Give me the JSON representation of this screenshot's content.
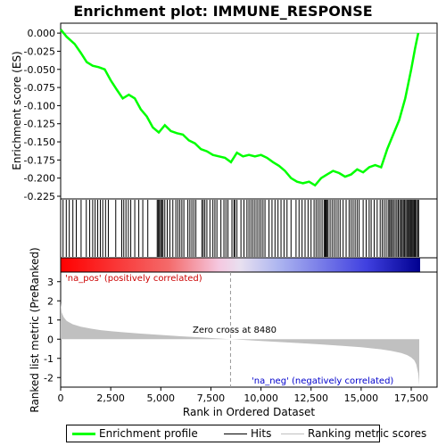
{
  "chart_data": {
    "title": "Enrichment plot: IMMUNE_RESPONSE",
    "x_axis": {
      "label": "Rank in Ordered Dataset",
      "range": [
        0,
        18000
      ],
      "ticks": [
        0,
        2500,
        5000,
        7500,
        10000,
        12500,
        15000,
        17500
      ],
      "tick_labels": [
        "0",
        "2,500",
        "5,000",
        "7,500",
        "10,000",
        "12,500",
        "15,000",
        "17,500"
      ]
    },
    "es_panel": {
      "type": "line",
      "ylabel": "Enrichment score (ES)",
      "ylim": [
        -0.225,
        0.01
      ],
      "yticks": [
        0.0,
        -0.025,
        -0.05,
        -0.075,
        -0.1,
        -0.125,
        -0.15,
        -0.175,
        -0.2,
        -0.225
      ],
      "ytick_labels": [
        "0.000",
        "-0.025",
        "-0.050",
        "-0.075",
        "-0.100",
        "-0.125",
        "-0.150",
        "-0.175",
        "-0.200",
        "-0.225"
      ],
      "series": [
        {
          "name": "Enrichment profile",
          "color": "#00ff00",
          "x": [
            0,
            300,
            700,
            1000,
            1300,
            1600,
            1900,
            2200,
            2500,
            2800,
            3100,
            3400,
            3700,
            4000,
            4300,
            4600,
            4900,
            5200,
            5500,
            5800,
            6100,
            6400,
            6700,
            7000,
            7300,
            7600,
            7900,
            8200,
            8500,
            8800,
            9100,
            9400,
            9700,
            10000,
            10300,
            10600,
            10900,
            11200,
            11500,
            11800,
            12100,
            12400,
            12700,
            13000,
            13300,
            13600,
            13900,
            14200,
            14500,
            14800,
            15100,
            15400,
            15700,
            16000,
            16300,
            16600,
            16900,
            17200,
            17500,
            17700,
            17850
          ],
          "y": [
            0.005,
            -0.005,
            -0.015,
            -0.027,
            -0.04,
            -0.045,
            -0.047,
            -0.05,
            -0.065,
            -0.078,
            -0.09,
            -0.085,
            -0.09,
            -0.105,
            -0.115,
            -0.13,
            -0.137,
            -0.127,
            -0.135,
            -0.138,
            -0.14,
            -0.148,
            -0.152,
            -0.16,
            -0.163,
            -0.168,
            -0.17,
            -0.172,
            -0.178,
            -0.165,
            -0.17,
            -0.168,
            -0.17,
            -0.168,
            -0.172,
            -0.178,
            -0.183,
            -0.19,
            -0.2,
            -0.205,
            -0.207,
            -0.205,
            -0.21,
            -0.2,
            -0.195,
            -0.19,
            -0.193,
            -0.198,
            -0.195,
            -0.188,
            -0.192,
            -0.185,
            -0.182,
            -0.185,
            -0.16,
            -0.14,
            -0.12,
            -0.09,
            -0.05,
            -0.02,
            0.0
          ]
        }
      ]
    },
    "hits_panel": {
      "name": "Hits",
      "color": "#000000",
      "positions": [
        120,
        280,
        430,
        610,
        780,
        1020,
        1280,
        1450,
        1600,
        1720,
        1850,
        1980,
        2100,
        2240,
        2380,
        2750,
        3050,
        3150,
        3260,
        3380,
        3500,
        3700,
        3900,
        4100,
        4350,
        4820,
        4870,
        4930,
        4990,
        5050,
        5110,
        5200,
        5320,
        5450,
        5600,
        5750,
        5850,
        5950,
        6050,
        6150,
        6350,
        6450,
        6550,
        6650,
        6750,
        7050,
        7120,
        7200,
        7300,
        7450,
        7600,
        7700,
        7800,
        8000,
        8150,
        8250,
        8350,
        8550,
        8650,
        8700,
        8800,
        9000,
        9150,
        9300,
        9400,
        9500,
        9600,
        9700,
        9800,
        9900,
        10000,
        10100,
        10200,
        10400,
        10550,
        10700,
        10850,
        11000,
        11150,
        11300,
        11500,
        11750,
        11900,
        12050,
        12200,
        12350,
        12500,
        12650,
        12750,
        12850,
        12950,
        13050,
        13150,
        13200,
        13250,
        13300,
        13350,
        13450,
        13550,
        13650,
        13750,
        13850,
        13950,
        14100,
        14250,
        14400,
        14500,
        14600,
        14700,
        14800,
        14900,
        15100,
        15250,
        15400,
        15500,
        15650,
        15800,
        15950,
        16050,
        16150,
        16250,
        16350,
        16420,
        16480,
        16550,
        16620,
        16700,
        16780,
        16850,
        16920,
        16990,
        17050,
        17110,
        17170,
        17230,
        17290,
        17350,
        17400,
        17450,
        17500,
        17550,
        17600,
        17650,
        17700,
        17760,
        17820,
        17870
      ]
    },
    "metric_panel": {
      "type": "area",
      "name": "Ranking metric scores",
      "color": "#c0c0c0",
      "ylabel": "Ranked list metric (PreRanked)",
      "ylim": [
        -2.5,
        3.5
      ],
      "yticks": [
        3,
        2,
        1,
        0,
        -1,
        -2
      ],
      "ytick_labels": [
        "3",
        "2",
        "1",
        "0",
        "-1",
        "-2"
      ],
      "x": [
        0,
        50,
        150,
        300,
        600,
        1000,
        1500,
        2000,
        3000,
        4000,
        5000,
        6000,
        7000,
        8000,
        8480,
        9000,
        10000,
        11000,
        12000,
        13000,
        14000,
        15000,
        16000,
        16500,
        17000,
        17300,
        17500,
        17650,
        17750,
        17850,
        17900
      ],
      "y": [
        1.9,
        1.4,
        1.15,
        0.95,
        0.78,
        0.65,
        0.55,
        0.47,
        0.37,
        0.29,
        0.22,
        0.15,
        0.09,
        0.03,
        0.0,
        -0.03,
        -0.09,
        -0.15,
        -0.21,
        -0.27,
        -0.34,
        -0.42,
        -0.53,
        -0.61,
        -0.72,
        -0.83,
        -0.95,
        -1.1,
        -1.3,
        -1.8,
        -2.4
      ]
    },
    "annotations": {
      "zero_cross_label": "Zero cross at 8480",
      "zero_cross_rank": 8480,
      "pos_label": "'na_pos' (positively correlated)",
      "pos_color": "#cc0000",
      "neg_label": "'na_neg' (negatively correlated)",
      "neg_color": "#0000cc"
    },
    "legend": {
      "items": [
        {
          "label": "Enrichment profile",
          "color": "#00ff00"
        },
        {
          "label": "Hits",
          "color": "#000000"
        },
        {
          "label": "Ranking metric scores",
          "color": "#c0c0c0"
        }
      ]
    }
  }
}
